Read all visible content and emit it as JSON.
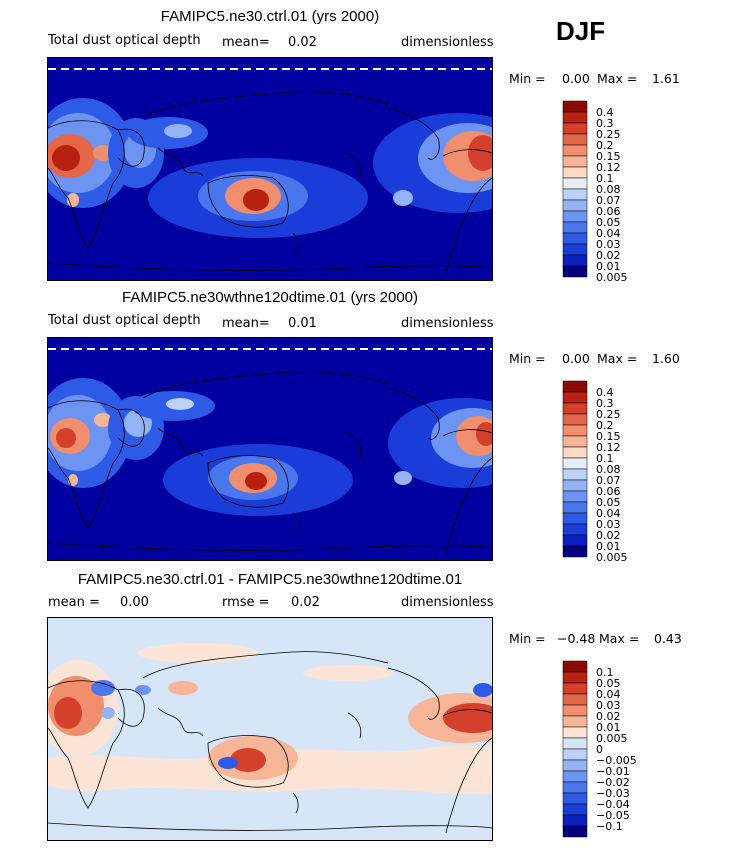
{
  "season": "DJF",
  "colors": {
    "seq": [
      "#000080",
      "#0a1fbf",
      "#1a3cd8",
      "#2d5ae6",
      "#4a76ee",
      "#6d94f3",
      "#93b3f6",
      "#bcd2f8",
      "#e6eef8",
      "#fcd9c6",
      "#f8b598",
      "#f08e6e",
      "#e5674a",
      "#d4402c",
      "#b8200f",
      "#8c0a04"
    ],
    "diff": [
      "#000080",
      "#0a1fbf",
      "#1a3cd8",
      "#2d5ae6",
      "#4a76ee",
      "#6d94f3",
      "#93b3f6",
      "#bcd2f8",
      "#d6e6f8",
      "#fbe4d6",
      "#f8b598",
      "#f08e6e",
      "#e5674a",
      "#d4402c",
      "#b8200f",
      "#8c0a04"
    ]
  },
  "panels": [
    {
      "title": "FAMIPC5.ne30.ctrl.01 (yrs 2000)",
      "variable": "Total dust optical depth",
      "mean_label": "mean=",
      "mean_value": "0.02",
      "units": "dimensionless",
      "min_label": "Min =",
      "min_value": "0.00",
      "max_label": "Max =",
      "max_value": "1.61"
    },
    {
      "title": "FAMIPC5.ne30wthne120dtime.01 (yrs 2000)",
      "variable": "Total dust optical depth",
      "mean_label": "mean=",
      "mean_value": "0.01",
      "units": "dimensionless",
      "min_label": "Min =",
      "min_value": "0.00",
      "max_label": "Max =",
      "max_value": "1.60"
    },
    {
      "title": "FAMIPC5.ne30.ctrl.01 - FAMIPC5.ne30wthne120dtime.01",
      "mean_label": "mean =",
      "mean_value": "0.00",
      "rmse_label": "rmse =",
      "rmse_value": "0.02",
      "units": "dimensionless",
      "min_label": "Min =",
      "min_value": "−0.48",
      "max_label": "Max =",
      "max_value": "0.43"
    }
  ],
  "chart_data": [
    {
      "type": "heatmap",
      "title": "FAMIPC5.ne30.ctrl.01 (yrs 2000)",
      "variable": "Total dust optical depth",
      "units": "dimensionless",
      "mean": 0.02,
      "min": 0.0,
      "max": 1.61,
      "colorbar_levels": [
        "0.4",
        "0.3",
        "0.25",
        "0.2",
        "0.15",
        "0.12",
        "0.1",
        "0.08",
        "0.07",
        "0.06",
        "0.05",
        "0.04",
        "0.03",
        "0.02",
        "0.01",
        "0.005"
      ]
    },
    {
      "type": "heatmap",
      "title": "FAMIPC5.ne30wthne120dtime.01 (yrs 2000)",
      "variable": "Total dust optical depth",
      "units": "dimensionless",
      "mean": 0.01,
      "min": 0.0,
      "max": 1.6,
      "colorbar_levels": [
        "0.4",
        "0.3",
        "0.25",
        "0.2",
        "0.15",
        "0.12",
        "0.1",
        "0.08",
        "0.07",
        "0.06",
        "0.05",
        "0.04",
        "0.03",
        "0.02",
        "0.01",
        "0.005"
      ]
    },
    {
      "type": "heatmap",
      "title": "FAMIPC5.ne30.ctrl.01 - FAMIPC5.ne30wthne120dtime.01",
      "units": "dimensionless",
      "mean": 0.0,
      "rmse": 0.02,
      "min": -0.48,
      "max": 0.43,
      "colorbar_levels": [
        "0.1",
        "0.05",
        "0.04",
        "0.03",
        "0.02",
        "0.01",
        "0.005",
        "0",
        "−0.005",
        "−0.01",
        "−0.02",
        "−0.03",
        "−0.04",
        "−0.05",
        "−0.1"
      ]
    }
  ]
}
